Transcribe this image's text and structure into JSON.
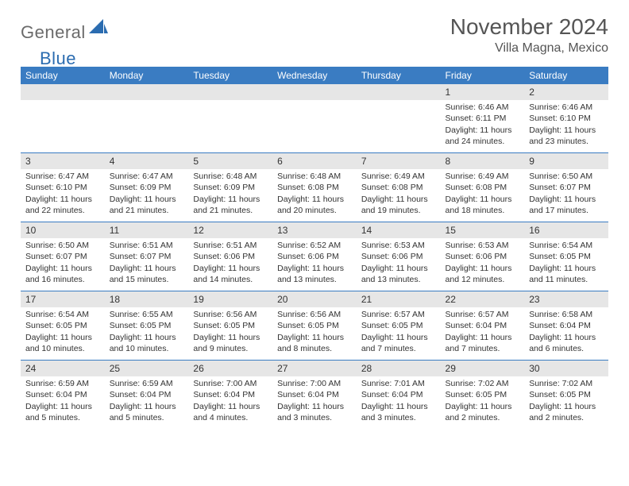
{
  "brand": {
    "part1": "General",
    "part2": "Blue"
  },
  "title": "November 2024",
  "location": "Villa Magna, Mexico",
  "colors": {
    "header_bg": "#3a7cc2",
    "header_text": "#ffffff",
    "grid_border": "#3a7cc2",
    "daynum_bg": "#e6e6e6",
    "text": "#333333",
    "logo_gray": "#6b6b6b",
    "logo_blue": "#2b6cb0"
  },
  "day_headers": [
    "Sunday",
    "Monday",
    "Tuesday",
    "Wednesday",
    "Thursday",
    "Friday",
    "Saturday"
  ],
  "weeks": [
    [
      {
        "day": "",
        "sunrise": "",
        "sunset": "",
        "daylight": ""
      },
      {
        "day": "",
        "sunrise": "",
        "sunset": "",
        "daylight": ""
      },
      {
        "day": "",
        "sunrise": "",
        "sunset": "",
        "daylight": ""
      },
      {
        "day": "",
        "sunrise": "",
        "sunset": "",
        "daylight": ""
      },
      {
        "day": "",
        "sunrise": "",
        "sunset": "",
        "daylight": ""
      },
      {
        "day": "1",
        "sunrise": "Sunrise: 6:46 AM",
        "sunset": "Sunset: 6:11 PM",
        "daylight": "Daylight: 11 hours and 24 minutes."
      },
      {
        "day": "2",
        "sunrise": "Sunrise: 6:46 AM",
        "sunset": "Sunset: 6:10 PM",
        "daylight": "Daylight: 11 hours and 23 minutes."
      }
    ],
    [
      {
        "day": "3",
        "sunrise": "Sunrise: 6:47 AM",
        "sunset": "Sunset: 6:10 PM",
        "daylight": "Daylight: 11 hours and 22 minutes."
      },
      {
        "day": "4",
        "sunrise": "Sunrise: 6:47 AM",
        "sunset": "Sunset: 6:09 PM",
        "daylight": "Daylight: 11 hours and 21 minutes."
      },
      {
        "day": "5",
        "sunrise": "Sunrise: 6:48 AM",
        "sunset": "Sunset: 6:09 PM",
        "daylight": "Daylight: 11 hours and 21 minutes."
      },
      {
        "day": "6",
        "sunrise": "Sunrise: 6:48 AM",
        "sunset": "Sunset: 6:08 PM",
        "daylight": "Daylight: 11 hours and 20 minutes."
      },
      {
        "day": "7",
        "sunrise": "Sunrise: 6:49 AM",
        "sunset": "Sunset: 6:08 PM",
        "daylight": "Daylight: 11 hours and 19 minutes."
      },
      {
        "day": "8",
        "sunrise": "Sunrise: 6:49 AM",
        "sunset": "Sunset: 6:08 PM",
        "daylight": "Daylight: 11 hours and 18 minutes."
      },
      {
        "day": "9",
        "sunrise": "Sunrise: 6:50 AM",
        "sunset": "Sunset: 6:07 PM",
        "daylight": "Daylight: 11 hours and 17 minutes."
      }
    ],
    [
      {
        "day": "10",
        "sunrise": "Sunrise: 6:50 AM",
        "sunset": "Sunset: 6:07 PM",
        "daylight": "Daylight: 11 hours and 16 minutes."
      },
      {
        "day": "11",
        "sunrise": "Sunrise: 6:51 AM",
        "sunset": "Sunset: 6:07 PM",
        "daylight": "Daylight: 11 hours and 15 minutes."
      },
      {
        "day": "12",
        "sunrise": "Sunrise: 6:51 AM",
        "sunset": "Sunset: 6:06 PM",
        "daylight": "Daylight: 11 hours and 14 minutes."
      },
      {
        "day": "13",
        "sunrise": "Sunrise: 6:52 AM",
        "sunset": "Sunset: 6:06 PM",
        "daylight": "Daylight: 11 hours and 13 minutes."
      },
      {
        "day": "14",
        "sunrise": "Sunrise: 6:53 AM",
        "sunset": "Sunset: 6:06 PM",
        "daylight": "Daylight: 11 hours and 13 minutes."
      },
      {
        "day": "15",
        "sunrise": "Sunrise: 6:53 AM",
        "sunset": "Sunset: 6:06 PM",
        "daylight": "Daylight: 11 hours and 12 minutes."
      },
      {
        "day": "16",
        "sunrise": "Sunrise: 6:54 AM",
        "sunset": "Sunset: 6:05 PM",
        "daylight": "Daylight: 11 hours and 11 minutes."
      }
    ],
    [
      {
        "day": "17",
        "sunrise": "Sunrise: 6:54 AM",
        "sunset": "Sunset: 6:05 PM",
        "daylight": "Daylight: 11 hours and 10 minutes."
      },
      {
        "day": "18",
        "sunrise": "Sunrise: 6:55 AM",
        "sunset": "Sunset: 6:05 PM",
        "daylight": "Daylight: 11 hours and 10 minutes."
      },
      {
        "day": "19",
        "sunrise": "Sunrise: 6:56 AM",
        "sunset": "Sunset: 6:05 PM",
        "daylight": "Daylight: 11 hours and 9 minutes."
      },
      {
        "day": "20",
        "sunrise": "Sunrise: 6:56 AM",
        "sunset": "Sunset: 6:05 PM",
        "daylight": "Daylight: 11 hours and 8 minutes."
      },
      {
        "day": "21",
        "sunrise": "Sunrise: 6:57 AM",
        "sunset": "Sunset: 6:05 PM",
        "daylight": "Daylight: 11 hours and 7 minutes."
      },
      {
        "day": "22",
        "sunrise": "Sunrise: 6:57 AM",
        "sunset": "Sunset: 6:04 PM",
        "daylight": "Daylight: 11 hours and 7 minutes."
      },
      {
        "day": "23",
        "sunrise": "Sunrise: 6:58 AM",
        "sunset": "Sunset: 6:04 PM",
        "daylight": "Daylight: 11 hours and 6 minutes."
      }
    ],
    [
      {
        "day": "24",
        "sunrise": "Sunrise: 6:59 AM",
        "sunset": "Sunset: 6:04 PM",
        "daylight": "Daylight: 11 hours and 5 minutes."
      },
      {
        "day": "25",
        "sunrise": "Sunrise: 6:59 AM",
        "sunset": "Sunset: 6:04 PM",
        "daylight": "Daylight: 11 hours and 5 minutes."
      },
      {
        "day": "26",
        "sunrise": "Sunrise: 7:00 AM",
        "sunset": "Sunset: 6:04 PM",
        "daylight": "Daylight: 11 hours and 4 minutes."
      },
      {
        "day": "27",
        "sunrise": "Sunrise: 7:00 AM",
        "sunset": "Sunset: 6:04 PM",
        "daylight": "Daylight: 11 hours and 3 minutes."
      },
      {
        "day": "28",
        "sunrise": "Sunrise: 7:01 AM",
        "sunset": "Sunset: 6:04 PM",
        "daylight": "Daylight: 11 hours and 3 minutes."
      },
      {
        "day": "29",
        "sunrise": "Sunrise: 7:02 AM",
        "sunset": "Sunset: 6:05 PM",
        "daylight": "Daylight: 11 hours and 2 minutes."
      },
      {
        "day": "30",
        "sunrise": "Sunrise: 7:02 AM",
        "sunset": "Sunset: 6:05 PM",
        "daylight": "Daylight: 11 hours and 2 minutes."
      }
    ]
  ]
}
